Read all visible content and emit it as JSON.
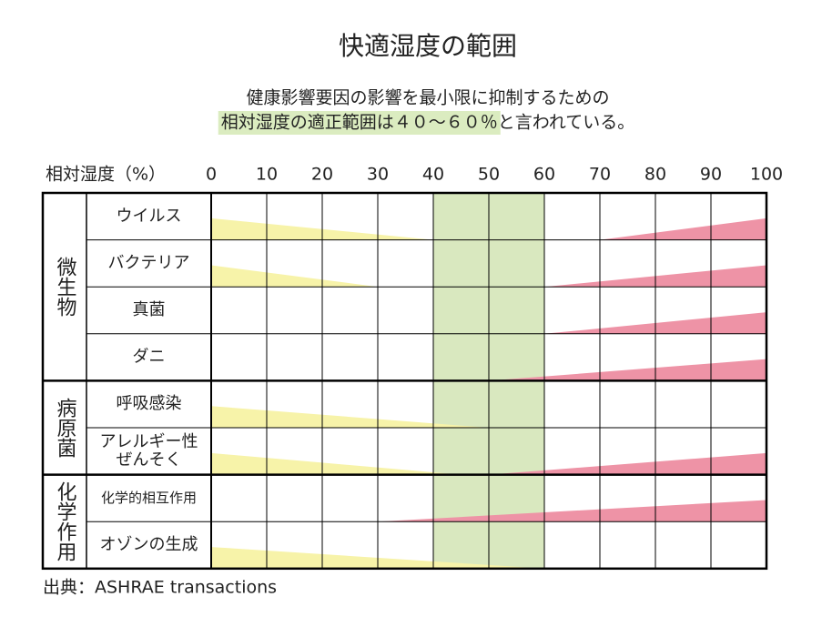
{
  "chart_data": {
    "type": "humidity-range",
    "title": "快適湿度の範囲",
    "subtitle": "健康影響要因の影響を最小限に抑制するための",
    "subtitle_highlight": "相対湿度の適正範囲は４０～６０％",
    "subtitle_rest": "と言われている。",
    "x_label": "相対湿度（%）",
    "xlim": [
      0,
      100
    ],
    "xticks": [
      0,
      10,
      20,
      30,
      40,
      50,
      60,
      70,
      80,
      90,
      100
    ],
    "optimal_range": [
      40,
      60
    ],
    "optimal_color": "#d9e8bf",
    "low_color": "#f7f3a9",
    "high_color": "#ee93a6",
    "highlight_color": "#dbecc0",
    "groups": [
      {
        "name": "微生物",
        "rows": [
          {
            "label": [
              "ウイルス"
            ],
            "low": [
              0,
              40
            ],
            "high": [
              70,
              100
            ]
          },
          {
            "label": [
              "バクテリア"
            ],
            "low": [
              0,
              30
            ],
            "high": [
              60,
              100
            ]
          },
          {
            "label": [
              "真菌"
            ],
            "low": null,
            "high": [
              60,
              100
            ]
          },
          {
            "label": [
              "ダニ"
            ],
            "low": null,
            "high": [
              50,
              100
            ]
          }
        ]
      },
      {
        "name": "病原菌",
        "rows": [
          {
            "label": [
              "呼吸感染"
            ],
            "low": [
              0,
              50
            ],
            "high": null
          },
          {
            "label": [
              "アレルギー性",
              "ぜんそく"
            ],
            "low": [
              0,
              45
            ],
            "high": [
              50,
              100
            ]
          }
        ]
      },
      {
        "name": "化学作用",
        "rows": [
          {
            "label": [
              "化学的相互作用"
            ],
            "low": null,
            "high": [
              30,
              100
            ]
          },
          {
            "label": [
              "オゾンの生成"
            ],
            "low": [
              0,
              60
            ],
            "high": null
          }
        ]
      }
    ],
    "source": "出典：ASHRAE transactions"
  }
}
